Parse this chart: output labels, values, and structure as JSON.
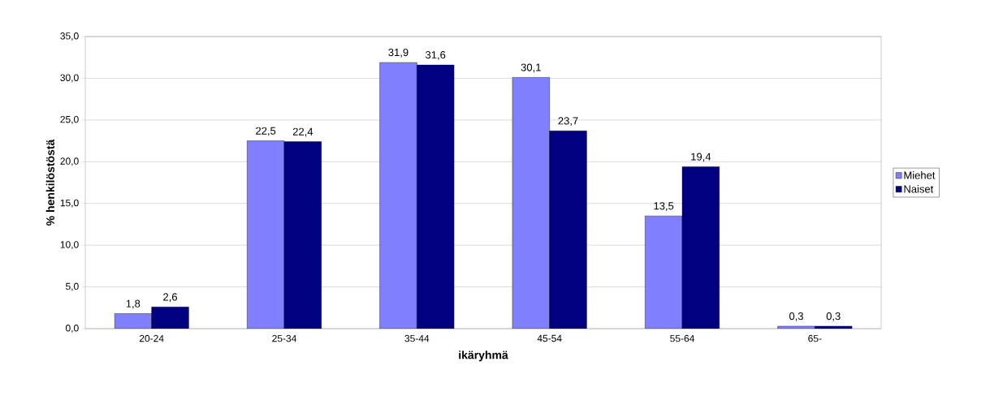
{
  "chart_data": {
    "type": "bar",
    "xlabel": "ikäryhmä",
    "ylabel": "% henkilöstöstä",
    "categories": [
      "20-24",
      "25-34",
      "35-44",
      "45-54",
      "55-64",
      "65-"
    ],
    "series": [
      {
        "name": "Miehet",
        "color": "#8080ff",
        "values": [
          1.8,
          22.5,
          31.9,
          30.1,
          13.5,
          0.3
        ],
        "value_labels": [
          "1,8",
          "22,5",
          "31,9",
          "30,1",
          "13,5",
          "0,3"
        ]
      },
      {
        "name": "Naiset",
        "color": "#000080",
        "values": [
          2.6,
          22.4,
          31.6,
          23.7,
          19.4,
          0.3
        ],
        "value_labels": [
          "2,6",
          "22,4",
          "31,6",
          "23,7",
          "19,4",
          "0,3"
        ]
      }
    ],
    "ylim": [
      0,
      35
    ],
    "yticks": [
      {
        "value": 0,
        "label": "0,0"
      },
      {
        "value": 5,
        "label": "5,0"
      },
      {
        "value": 10,
        "label": "10,0"
      },
      {
        "value": 15,
        "label": "15,0"
      },
      {
        "value": 20,
        "label": "20,0"
      },
      {
        "value": 25,
        "label": "25,0"
      },
      {
        "value": 30,
        "label": "30,0"
      },
      {
        "value": 35,
        "label": "35,0"
      }
    ],
    "grid": "y",
    "legend": "right"
  }
}
